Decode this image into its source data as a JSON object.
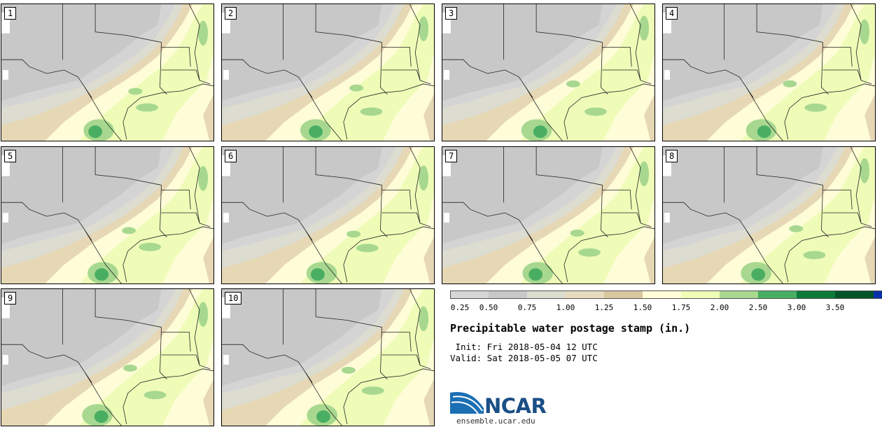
{
  "panels": [
    "1",
    "2",
    "3",
    "4",
    "5",
    "6",
    "7",
    "8",
    "9",
    "10"
  ],
  "colorbar": {
    "ticks": [
      "0.25",
      "0.50",
      "0.75",
      "1.00",
      "1.25",
      "1.50",
      "1.75",
      "2.00",
      "2.50",
      "3.00",
      "3.50"
    ],
    "colors": [
      "#d6d6d6",
      "#c8c8c8",
      "#dcdcd0",
      "#e8dcc0",
      "#d8c8a0",
      "#fffcd8",
      "#eefcb8",
      "#a8d890",
      "#4aae62",
      "#0c7a38",
      "#005428",
      "#0a30a8"
    ]
  },
  "title": "Precipitable water postage stamp (in.)",
  "init_line": " Init: Fri 2018-05-04 12 UTC",
  "valid_line": "Valid: Sat 2018-05-05 07 UTC",
  "logo": {
    "name": "NCAR",
    "url": "ensemble.ucar.edu"
  }
}
